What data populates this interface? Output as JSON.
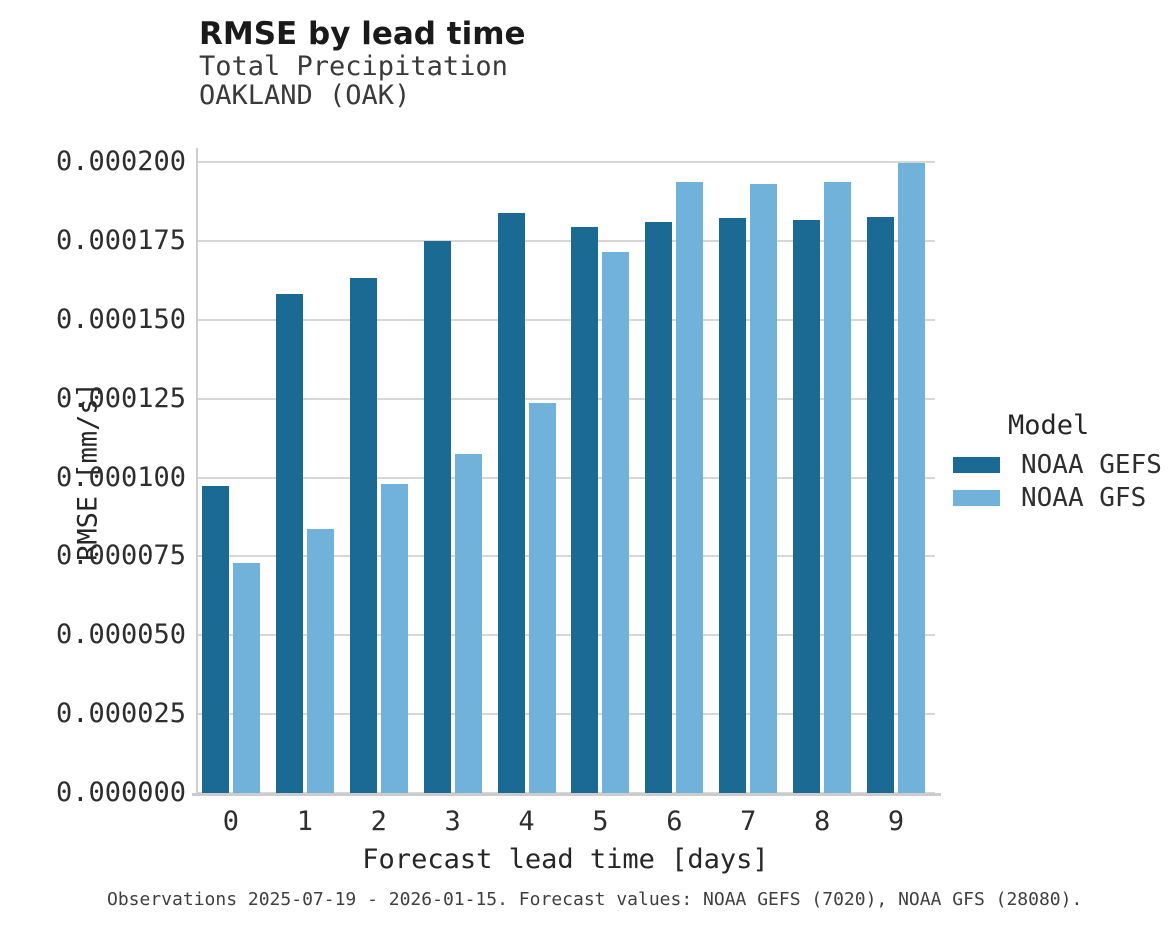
{
  "chart_data": {
    "type": "bar",
    "grouped": true,
    "title": "RMSE by lead time",
    "subtitle_lines": [
      "Total Precipitation",
      "OAKLAND (OAK)"
    ],
    "xlabel": "Forecast lead time [days]",
    "ylabel": "RMSE [mm/s]",
    "categories": [
      "0",
      "1",
      "2",
      "3",
      "4",
      "5",
      "6",
      "7",
      "8",
      "9"
    ],
    "series": [
      {
        "name": "NOAA GEFS",
        "color": "#1b6a94",
        "values": [
          9.73e-05,
          0.0001582,
          0.0001631,
          0.000175,
          0.0001839,
          0.0001793,
          0.0001809,
          0.0001822,
          0.0001816,
          0.0001827
        ]
      },
      {
        "name": "NOAA GFS",
        "color": "#71b2da",
        "values": [
          7.3e-05,
          8.36e-05,
          9.79e-05,
          0.0001074,
          0.0001235,
          0.0001714,
          0.0001936,
          0.000193,
          0.0001936,
          0.0001996
        ]
      }
    ],
    "ylim": [
      0,
      0.0002
    ],
    "yticks": [
      0,
      2.5e-05,
      5e-05,
      7.5e-05,
      0.0001,
      0.000125,
      0.00015,
      0.000175,
      0.0002
    ],
    "ytick_labels": [
      "0.000000",
      "0.000025",
      "0.000050",
      "0.000075",
      "0.000100",
      "0.000125",
      "0.000150",
      "0.000175",
      "0.000200"
    ],
    "grid": "horizontal gridlines only",
    "legend_position": "right",
    "legend_title": "Model",
    "caption": "Observations 2025-07-19 - 2026-01-15. Forecast values: NOAA GEFS (7020), NOAA GFS (28080)."
  },
  "colors": {
    "background": "#ffffff",
    "gridline": "#d7d7d7",
    "axis_line": "#cccccc",
    "dark_blue": "#1b6a94",
    "light_blue": "#71b2da"
  }
}
